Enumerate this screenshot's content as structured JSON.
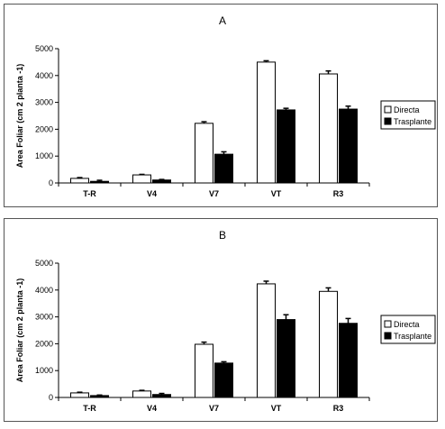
{
  "chart_data": [
    {
      "type": "bar",
      "title": "A",
      "ylabel": "Area Foliar (cm 2 planta -1)",
      "ylim": [
        0,
        5000
      ],
      "yticks": [
        "0",
        "1000",
        "2000",
        "3000",
        "4000",
        "5000"
      ],
      "categories": [
        "T-R",
        "V4",
        "V7",
        "VT",
        "R3"
      ],
      "legend_position": "right",
      "series": [
        {
          "name": "Directa",
          "color": "#ffffff",
          "values": [
            170,
            300,
            2220,
            4500,
            4060
          ],
          "errors": [
            30,
            20,
            60,
            50,
            110
          ]
        },
        {
          "name": "Trasplante",
          "color": "#000000",
          "values": [
            60,
            110,
            1070,
            2720,
            2750
          ],
          "errors": [
            40,
            20,
            90,
            60,
            110
          ]
        }
      ]
    },
    {
      "type": "bar",
      "title": "B",
      "ylabel": "Area Foliar (cm 2 planta -1)",
      "ylim": [
        0,
        5000
      ],
      "yticks": [
        "0",
        "1000",
        "2000",
        "3000",
        "4000",
        "5000"
      ],
      "categories": [
        "T-R",
        "V4",
        "V7",
        "VT",
        "R3"
      ],
      "legend_position": "right",
      "series": [
        {
          "name": "Directa",
          "color": "#ffffff",
          "values": [
            170,
            240,
            1980,
            4230,
            3950
          ],
          "errors": [
            25,
            25,
            80,
            100,
            130
          ]
        },
        {
          "name": "Trasplante",
          "color": "#000000",
          "values": [
            70,
            110,
            1280,
            2900,
            2760
          ],
          "errors": [
            20,
            40,
            50,
            180,
            180
          ]
        }
      ]
    }
  ]
}
